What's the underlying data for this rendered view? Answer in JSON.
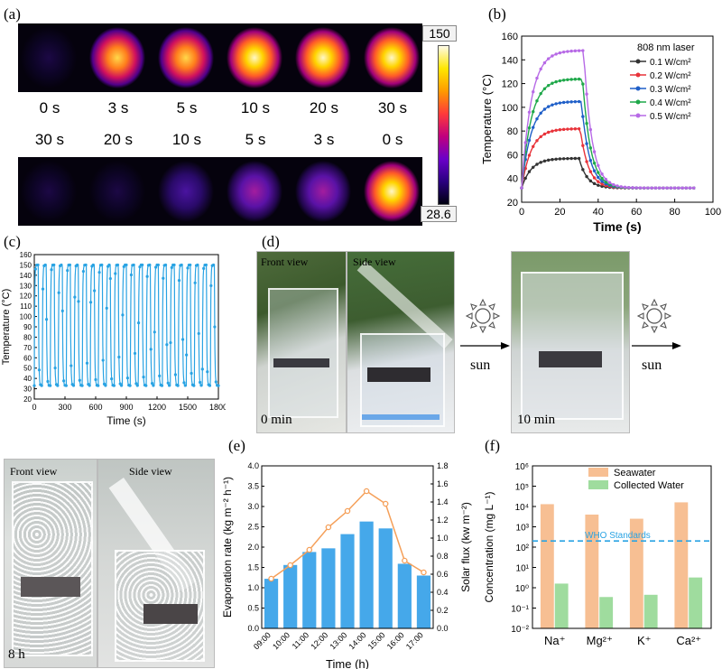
{
  "panels": {
    "a": "(a)",
    "b": "(b)",
    "c": "(c)",
    "d": "(d)",
    "e": "(e)",
    "f": "(f)"
  },
  "panel_a": {
    "colorbar_max": "150",
    "colorbar_min": "28.6",
    "row1_times": [
      "0 s",
      "3 s",
      "5 s",
      "10 s",
      "20 s",
      "30 s"
    ],
    "row2_times": [
      "30 s",
      "20 s",
      "10 s",
      "5 s",
      "3 s",
      "0 s"
    ],
    "row1_intensity": [
      0.0,
      0.65,
      0.8,
      0.88,
      0.93,
      1.0
    ],
    "row2_intensity": [
      0.02,
      0.06,
      0.18,
      0.3,
      0.38,
      1.0
    ]
  },
  "panel_d": {
    "front_view": "Front view",
    "side_view": "Side view",
    "time0": "0 min",
    "time10": "10 min",
    "time8h": "8 h",
    "sun1": "sun",
    "sun2": "sun"
  },
  "chart_data": [
    {
      "id": "b",
      "type": "line",
      "xlabel": "Time (s)",
      "ylabel": "Temperature (°C)",
      "xlim": [
        0,
        100
      ],
      "ylim": [
        20,
        160
      ],
      "xticks": [
        0,
        20,
        40,
        60,
        80,
        100
      ],
      "yticks": [
        20,
        40,
        60,
        80,
        100,
        120,
        140,
        160
      ],
      "legend_title": "808 nm laser",
      "legend_position": "top-right",
      "series": [
        {
          "name": "0.1 W/cm²",
          "color": "#333333",
          "plateau": 57
        },
        {
          "name": "0.2 W/cm²",
          "color": "#e8333a",
          "plateau": 82
        },
        {
          "name": "0.3 W/cm²",
          "color": "#1f5fc8",
          "plateau": 105
        },
        {
          "name": "0.4 W/cm²",
          "color": "#1fa84a",
          "plateau": 124
        },
        {
          "name": "0.5 W/cm²",
          "color": "#b76ae6",
          "plateau": 148
        }
      ],
      "baseline": 32,
      "laser_off_time": 30
    },
    {
      "id": "c",
      "type": "line",
      "xlabel": "Time (s)",
      "ylabel": "Temperature (°C)",
      "xlim": [
        0,
        1800
      ],
      "ylim": [
        20,
        160
      ],
      "xticks": [
        0,
        300,
        600,
        900,
        1200,
        1500,
        1800
      ],
      "yticks": [
        20,
        30,
        40,
        50,
        60,
        70,
        80,
        90,
        100,
        110,
        120,
        130,
        140,
        150,
        160
      ],
      "cycles": 23,
      "max_temp": 150,
      "min_temp": 33,
      "color": "#29a3e3"
    },
    {
      "id": "e",
      "type": "bar",
      "xlabel": "Time (h)",
      "ylabel": "Evaporation rate (kg m⁻² h⁻¹)",
      "ylabel_right": "Solar flux (kw m⁻²)",
      "categories": [
        "09:00",
        "10:00",
        "11:00",
        "12:00",
        "13:00",
        "14:00",
        "15:00",
        "16:00",
        "17:00"
      ],
      "values": [
        1.22,
        1.56,
        1.88,
        1.97,
        2.32,
        2.63,
        2.46,
        1.59,
        1.3
      ],
      "solar_flux": [
        0.55,
        0.7,
        0.87,
        1.12,
        1.3,
        1.52,
        1.38,
        0.75,
        0.62
      ],
      "ylim": [
        0.0,
        4.0
      ],
      "ylim_right": [
        0.0,
        1.8
      ],
      "yticks": [
        "0.0",
        "0.5",
        "1.0",
        "1.5",
        "2.0",
        "2.5",
        "3.0",
        "3.5",
        "4.0"
      ],
      "yticks_right": [
        "0.0",
        "0.2",
        "0.4",
        "0.6",
        "0.8",
        "1.0",
        "1.2",
        "1.4",
        "1.6",
        "1.8"
      ],
      "bar_color": "#45a8ea",
      "line_color": "#f5a05a"
    },
    {
      "id": "f",
      "type": "bar",
      "scale": "log",
      "ylabel": "Concentration (mg L⁻¹)",
      "categories": [
        "Na⁺",
        "Mg²⁺",
        "K⁺",
        "Ca²⁺"
      ],
      "series": [
        {
          "name": "Seawater",
          "color": "#f7bf93",
          "values": [
            13000,
            4000,
            2500,
            16000
          ]
        },
        {
          "name": "Collected Water",
          "color": "#9fdc9e",
          "values": [
            1.6,
            0.35,
            0.45,
            3.2
          ]
        }
      ],
      "ylim_exp": [
        -2,
        6
      ],
      "ytick_labels": [
        "10⁻²",
        "10⁻¹",
        "10⁰",
        "10¹",
        "10²",
        "10³",
        "10⁴",
        "10⁵",
        "10⁶"
      ],
      "reference_line": {
        "label": "WHO Standards",
        "value": 200,
        "color": "#29a3e3"
      },
      "legend_position": "top-right"
    }
  ]
}
